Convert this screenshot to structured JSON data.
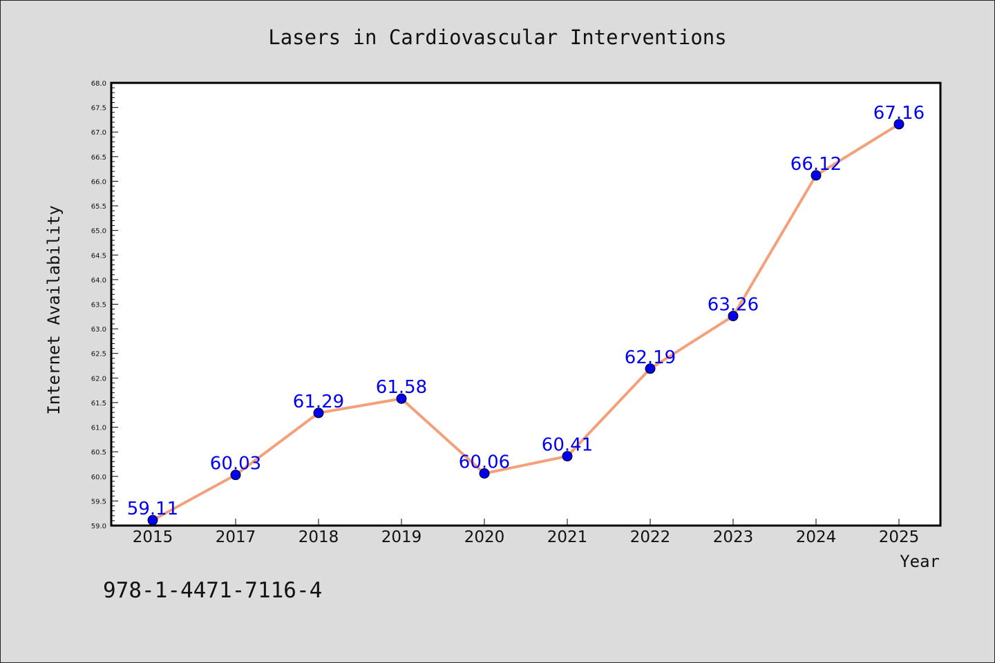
{
  "chart_data": {
    "type": "line",
    "title": "Lasers in Cardiovascular Interventions",
    "xlabel": "Year",
    "ylabel": "Internet Availability",
    "categories": [
      "2015",
      "2017",
      "2018",
      "2019",
      "2020",
      "2021",
      "2022",
      "2023",
      "2024",
      "2025"
    ],
    "series": [
      {
        "values": [
          59.11,
          60.03,
          61.29,
          61.58,
          60.06,
          60.41,
          62.19,
          63.26,
          66.12,
          67.16
        ],
        "line_color": "#f4a07a",
        "marker_color": "#0000ee"
      }
    ],
    "data_labels": [
      "59.11",
      "60.03",
      "61.29",
      "61.58",
      "60.06",
      "60.41",
      "62.19",
      "63.26",
      "66.12",
      "67.16"
    ],
    "ylim": [
      59.0,
      68.0
    ],
    "y_tick_step": 0.5,
    "y_tick_labels": [
      "59.0",
      "59.5",
      "60.0",
      "60.5",
      "61.0",
      "61.5",
      "62.0",
      "62.5",
      "63.0",
      "63.5",
      "64.0",
      "64.5",
      "65.0",
      "65.5",
      "66.0",
      "66.5",
      "67.0",
      "67.5",
      "68.0"
    ],
    "grid": false,
    "legend": "none"
  },
  "footer_code": "978-1-4471-7116-4",
  "colors": {
    "background": "#dcdcdc",
    "plot_area": "#ffffff",
    "line": "#f4a07a",
    "marker": "#0000ee",
    "data_label": "#0000ee"
  }
}
